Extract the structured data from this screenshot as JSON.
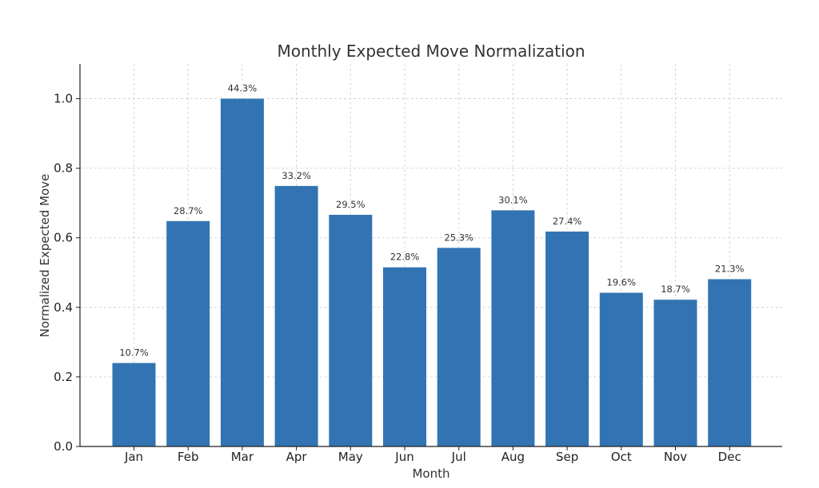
{
  "chart_data": {
    "type": "bar",
    "title": "Monthly Expected Move Normalization",
    "xlabel": "Month",
    "ylabel": "Normalized Expected Move",
    "categories": [
      "Jan",
      "Feb",
      "Mar",
      "Apr",
      "May",
      "Jun",
      "Jul",
      "Aug",
      "Sep",
      "Oct",
      "Nov",
      "Dec"
    ],
    "values": [
      0.24,
      0.648,
      1.0,
      0.749,
      0.666,
      0.515,
      0.571,
      0.679,
      0.618,
      0.442,
      0.422,
      0.481
    ],
    "data_labels": [
      "10.7%",
      "28.7%",
      "44.3%",
      "33.2%",
      "29.5%",
      "22.8%",
      "25.3%",
      "30.1%",
      "27.4%",
      "19.6%",
      "18.7%",
      "21.3%"
    ],
    "ylim": [
      0,
      1.1
    ],
    "yticks": [
      0.0,
      0.2,
      0.4,
      0.6,
      0.8,
      1.0
    ],
    "ytick_labels": [
      "0.0",
      "0.2",
      "0.4",
      "0.6",
      "0.8",
      "1.0"
    ],
    "grid": true,
    "bar_color": "#3274b3"
  }
}
